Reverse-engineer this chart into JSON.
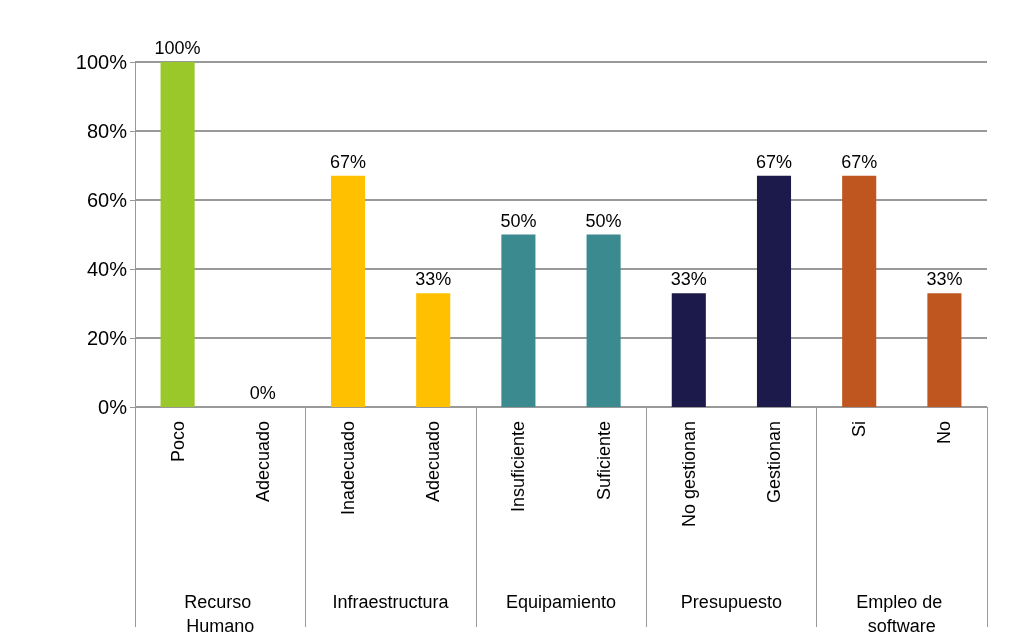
{
  "chart_data": {
    "type": "bar",
    "categories": [
      "Poco",
      "Adecuado",
      "Inadecuado",
      "Adecuado",
      "Insuficiente",
      "Suficiente",
      "No gestionan",
      "Gestionan",
      "Si",
      "No"
    ],
    "values": [
      100,
      0,
      67,
      33,
      50,
      50,
      33,
      67,
      67,
      33
    ],
    "colors": [
      "#9ac72a",
      "#9ac72a",
      "#ffc000",
      "#ffc000",
      "#3b8a8f",
      "#3b8a8f",
      "#1c1a4a",
      "#1c1a4a",
      "#bf5620",
      "#bf5620"
    ],
    "value_labels": [
      "100%",
      "0%",
      "67%",
      "33%",
      "50%",
      "50%",
      "33%",
      "67%",
      "67%",
      "33%"
    ],
    "annotations": [
      "Recurso Humano",
      "Infraestructura",
      "Equipamiento",
      "Presupuesto",
      "Empleo de software"
    ],
    "ylim": [
      0,
      100
    ],
    "yticks": [
      {
        "value": 0,
        "label": "0%"
      },
      {
        "value": 20,
        "label": "20%"
      },
      {
        "value": 40,
        "label": "40%"
      },
      {
        "value": 60,
        "label": "60%"
      },
      {
        "value": 80,
        "label": "80%"
      },
      {
        "value": 100,
        "label": "100%"
      }
    ],
    "grid": true
  }
}
